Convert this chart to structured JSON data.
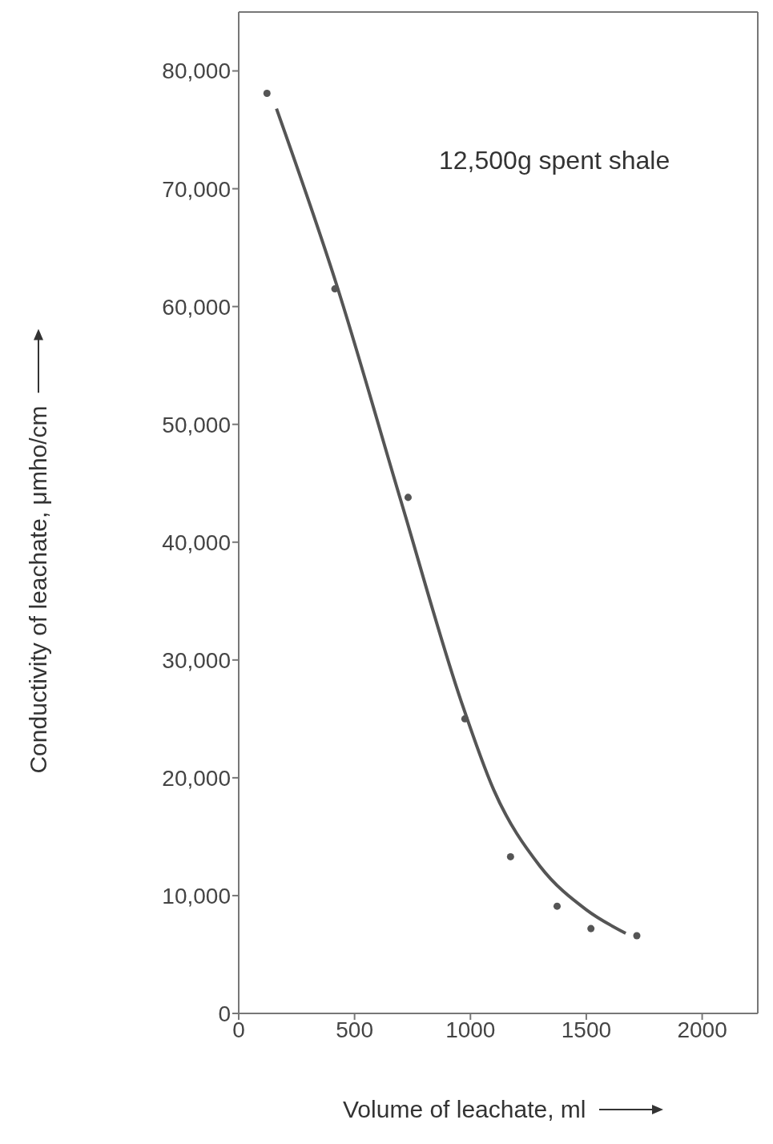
{
  "chart_data": {
    "type": "scatter",
    "xlabel": "Volume of leachate, ml",
    "ylabel": "Conductivity of leachate, μmho/cm",
    "xlim": [
      0,
      2240
    ],
    "ylim": [
      0,
      85000
    ],
    "xticks": [
      0,
      500,
      1000,
      1500,
      2000
    ],
    "yticks": [
      0,
      {
        "value": 10000,
        "label": "10,000"
      },
      {
        "value": 20000,
        "label": "20,000"
      },
      {
        "value": 30000,
        "label": "30,000"
      },
      {
        "value": 40000,
        "label": "40,000"
      },
      {
        "value": 50000,
        "label": "50,000"
      },
      {
        "value": 60000,
        "label": "60,000"
      },
      {
        "value": 70000,
        "label": "70,000"
      },
      {
        "value": 80000,
        "label": "80,000"
      }
    ],
    "marker": "circle",
    "annotations": [
      "12,500g spent shale"
    ],
    "series": [
      {
        "color": "#555555",
        "x": [
          122,
          415,
          731,
          976,
          1173,
          1374,
          1520,
          1718
        ],
        "values": [
          78100,
          61500,
          43800,
          25000,
          13300,
          9100,
          7200,
          6600
        ]
      },
      {
        "type": "line",
        "color": "#555555",
        "marker": "none",
        "line_style": "solid",
        "x": [
          163,
          420,
          700,
          960,
          1100,
          1300,
          1500,
          1670
        ],
        "values": [
          76800,
          62000,
          43500,
          26500,
          19000,
          12500,
          8800,
          6800
        ]
      }
    ]
  }
}
